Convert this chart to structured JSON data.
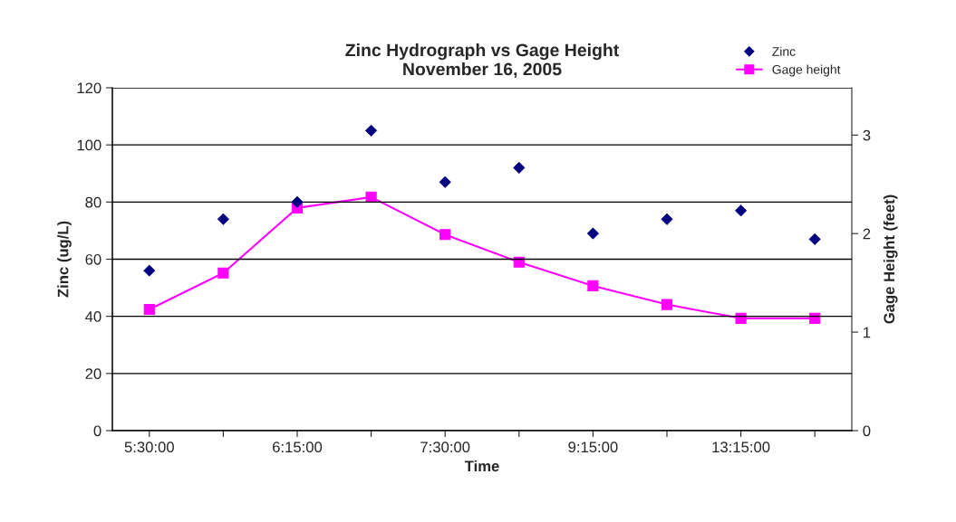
{
  "chart_data": {
    "type": "line",
    "title": "Zinc Hydrograph vs Gage Height\nNovember 16, 2005",
    "xlabel": "Time",
    "ylabel": "Zinc (ug/L)",
    "y2label": "Gage Height (feet)",
    "categories": [
      "5:30:00",
      null,
      "6:15:00",
      null,
      "7:30:00",
      null,
      "9:15:00",
      null,
      "13:15:00",
      null
    ],
    "series": [
      {
        "name": "Zinc",
        "type": "scatter",
        "marker": "diamond",
        "color": "#000080",
        "values": [
          56,
          74,
          80,
          105,
          87,
          92,
          69,
          74,
          77,
          67
        ]
      },
      {
        "name": "Gage height",
        "marker": "square",
        "color": "#ff00ff",
        "axis": "y2",
        "values": [
          1.23,
          1.6,
          2.26,
          2.37,
          1.99,
          1.71,
          1.47,
          1.28,
          1.14,
          1.14
        ]
      }
    ],
    "ylim": [
      0,
      120
    ],
    "yticks": [
      0,
      20,
      40,
      60,
      80,
      100,
      120
    ],
    "y2lim": [
      0,
      3.48
    ],
    "y2ticks": [
      0,
      1,
      2,
      3
    ],
    "grid": "y",
    "legend": "top right"
  }
}
